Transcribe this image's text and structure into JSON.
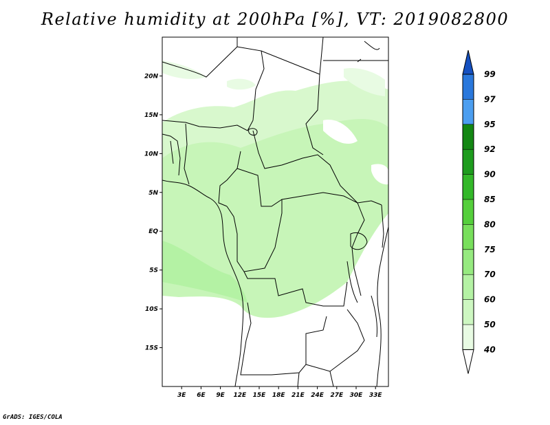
{
  "title": "Relative humidity at 200hPa [%], VT: 2019082800",
  "credit": "GrADS: IGES/COLA",
  "map": {
    "lon_range": [
      0,
      35
    ],
    "lat_range": [
      -20,
      25
    ],
    "lat_ticks": [
      {
        "lat": 20,
        "label": "20N"
      },
      {
        "lat": 15,
        "label": "15N"
      },
      {
        "lat": 10,
        "label": "10N"
      },
      {
        "lat": 5,
        "label": "5N"
      },
      {
        "lat": 0,
        "label": "EQ"
      },
      {
        "lat": -5,
        "label": "5S"
      },
      {
        "lat": -10,
        "label": "10S"
      },
      {
        "lat": -15,
        "label": "15S"
      }
    ],
    "lon_ticks": [
      {
        "lon": 3,
        "label": "3E"
      },
      {
        "lon": 6,
        "label": "6E"
      },
      {
        "lon": 9,
        "label": "9E"
      },
      {
        "lon": 12,
        "label": "12E"
      },
      {
        "lon": 15,
        "label": "15E"
      },
      {
        "lon": 18,
        "label": "18E"
      },
      {
        "lon": 21,
        "label": "21E"
      },
      {
        "lon": 24,
        "label": "24E"
      },
      {
        "lon": 27,
        "label": "27E"
      },
      {
        "lon": 30,
        "label": "30E"
      },
      {
        "lon": 33,
        "label": "33E"
      }
    ]
  },
  "colorbar": {
    "levels": [
      "40",
      "50",
      "60",
      "70",
      "75",
      "80",
      "85",
      "90",
      "92",
      "95",
      "97",
      "99"
    ],
    "colors": [
      "#ffffff",
      "#e8fbe3",
      "#cdf7c1",
      "#b4f2a4",
      "#96ea80",
      "#78df5c",
      "#55cf3c",
      "#33b829",
      "#1e9c1e",
      "#138713",
      "#4c9ef0",
      "#2a78dc",
      "#1550c0"
    ]
  },
  "legend_colors": {
    "land_outline": "#000000",
    "humidity_base": "#c7f5b8"
  }
}
